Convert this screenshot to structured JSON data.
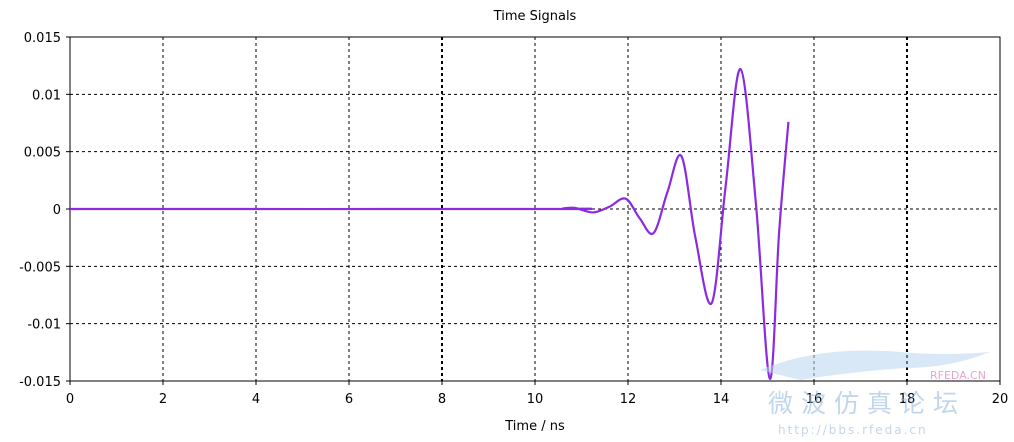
{
  "chart_data": {
    "type": "line",
    "title": "Time Signals",
    "xlabel": "Time / ns",
    "ylabel": "",
    "xlim": [
      0,
      20
    ],
    "ylim": [
      -0.015,
      0.015
    ],
    "xticks": [
      0,
      2,
      4,
      6,
      8,
      10,
      12,
      14,
      16,
      18,
      20
    ],
    "xtick_labels": [
      "0",
      "2",
      "4",
      "6",
      "8",
      "10",
      "12",
      "14",
      "16",
      "18",
      "20"
    ],
    "yticks": [
      0.015,
      0.01,
      0.005,
      0,
      -0.005,
      -0.01,
      -0.015
    ],
    "ytick_labels": [
      "0.015",
      "0.01",
      "0.005",
      "0",
      "-0.005",
      "-0.01",
      "-0.015"
    ],
    "grid": true,
    "line_color": "#8a2be2",
    "series": [
      {
        "x": [
          0,
          10.4,
          10.6,
          10.85,
          11.25,
          11.6,
          11.95,
          12.25,
          12.55,
          12.85,
          13.15,
          13.45,
          13.8,
          14.1,
          14.42,
          14.75,
          15.05,
          15.25,
          15.45
        ],
        "y": [
          0,
          0,
          5e-05,
          0.0001,
          -0.0003,
          0.0002,
          0.0009,
          -0.0008,
          -0.0021,
          0.0015,
          0.0046,
          -0.0025,
          -0.0082,
          0.002,
          0.0122,
          0.0005,
          -0.0148,
          -0.002,
          0.0076
        ]
      }
    ]
  },
  "watermark": {
    "brand": "RFEDA.CN",
    "chinese_title": "微波仿真论坛",
    "url": "http://bbs.rfeda.cn"
  }
}
